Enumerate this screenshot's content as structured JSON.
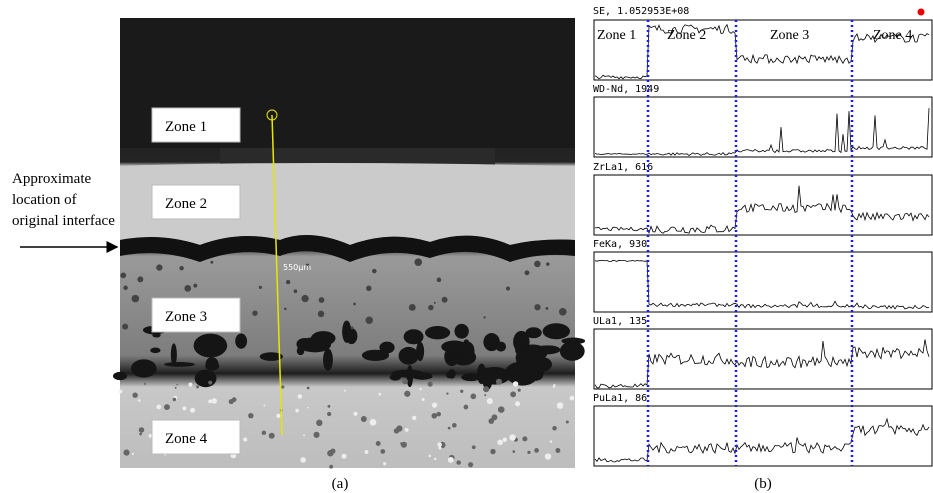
{
  "left_panel": {
    "zones": [
      "Zone 1",
      "Zone 2",
      "Zone 3",
      "Zone 4"
    ],
    "interface_label": [
      "Approximate",
      "location of",
      "original interface"
    ],
    "scale_label": "550µm",
    "caption": "(a)"
  },
  "right_panel": {
    "header": "SE, 1.052953E+08",
    "zones": [
      "Zone 1",
      "Zone 2",
      "Zone 3",
      "Zone 4"
    ],
    "traces": [
      "WD-Nd, 1949",
      "ZrLa1, 616",
      "FeKa, 930",
      "ULa1, 135",
      "PuLa1, 86"
    ],
    "caption": "(b)"
  }
}
